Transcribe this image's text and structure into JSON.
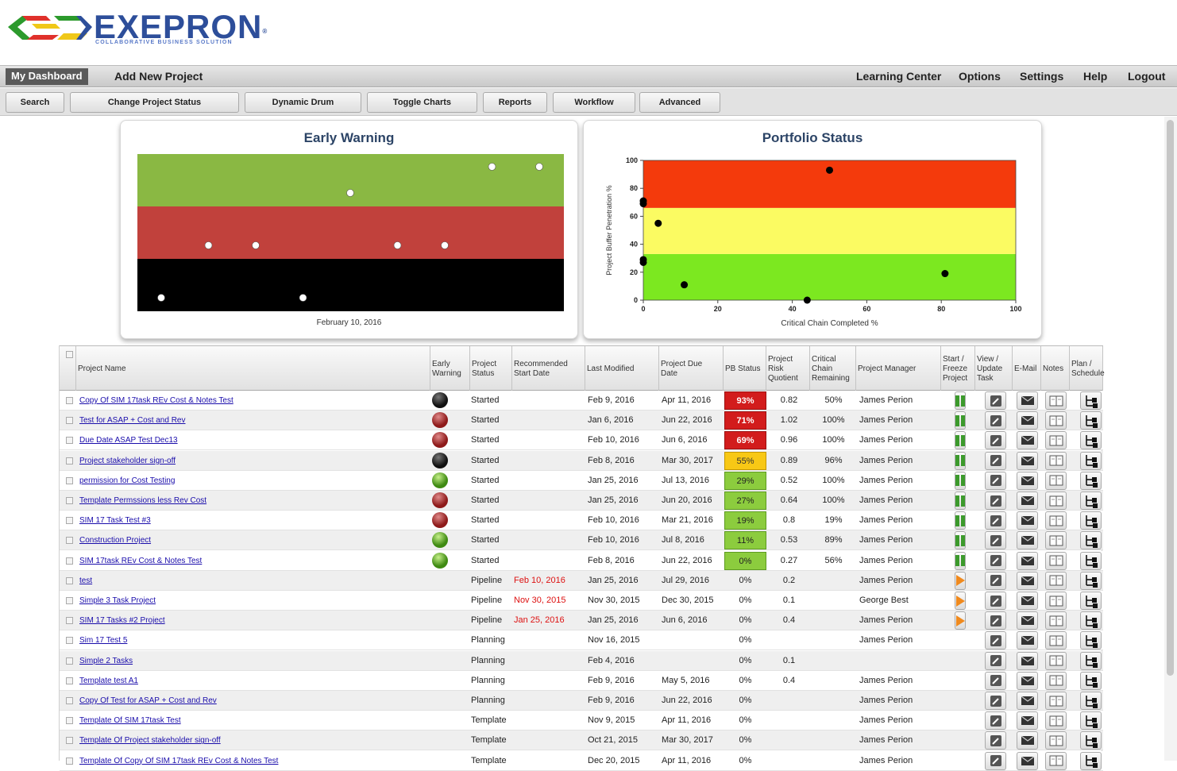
{
  "brand": {
    "name": "EXEPRON",
    "registered": "®",
    "tagline": "COLLABORATIVE BUSINESS SOLUTION"
  },
  "nav": {
    "dashboard": "My Dashboard",
    "add_project": "Add New Project",
    "learning": "Learning Center",
    "options": "Options",
    "settings": "Settings",
    "help": "Help",
    "logout": "Logout"
  },
  "toolbar": {
    "search": "Search",
    "change_status": "Change Project Status",
    "dynamic_drum": "Dynamic Drum",
    "toggle_charts": "Toggle Charts",
    "reports": "Reports",
    "workflow": "Workflow",
    "advanced": "Advanced"
  },
  "chart_data": [
    {
      "type": "scatter",
      "title": "Early Warning",
      "xlabel": "February 10, 2016",
      "ylabel": "",
      "bands": [
        {
          "color": "#8ab843"
        },
        {
          "color": "#c1413c"
        },
        {
          "color": "#000000"
        }
      ],
      "points": [
        {
          "x": 1,
          "band": "black"
        },
        {
          "x": 2,
          "band": "red"
        },
        {
          "x": 3,
          "band": "red"
        },
        {
          "x": 4,
          "band": "black"
        },
        {
          "x": 5,
          "band": "green"
        },
        {
          "x": 6,
          "band": "red"
        },
        {
          "x": 7,
          "band": "red"
        },
        {
          "x": 8,
          "band": "green"
        },
        {
          "x": 9,
          "band": "green"
        }
      ],
      "grid": false
    },
    {
      "type": "scatter",
      "title": "Portfolio Status",
      "xlabel": "Critical Chain Completed %",
      "ylabel": "Project Buffer Penetration %",
      "xlim": [
        0,
        100
      ],
      "ylim": [
        0,
        100
      ],
      "xticks": [
        0,
        20,
        40,
        60,
        80,
        100
      ],
      "yticks": [
        0,
        20,
        40,
        60,
        80,
        100
      ],
      "zones": [
        {
          "from": 0,
          "to": 33,
          "color": "#7ce820"
        },
        {
          "from": 33,
          "to": 66,
          "color": "#fbfb62"
        },
        {
          "from": 66,
          "to": 100,
          "color": "#f43a0c"
        }
      ],
      "x": [
        50,
        0,
        0,
        4,
        0,
        0,
        11,
        81,
        44
      ],
      "y": [
        93,
        71,
        69,
        55,
        29,
        27,
        11,
        19,
        0
      ],
      "grid": false
    }
  ],
  "table": {
    "columns": [
      "Project Name",
      "Early Warning",
      "Project Status",
      "Recommended Start Date",
      "Last Modified",
      "Project Due Date",
      "PB Status",
      "Project Risk Quotient",
      "Critical Chain Remaining",
      "Project Manager",
      "Start / Freeze Project",
      "View / Update Task",
      "E-Mail",
      "Notes",
      "Plan / Schedule"
    ],
    "rows": [
      {
        "name": "Copy Of SIM 17task REv Cost & Notes Test",
        "warning": "black",
        "status": "Started",
        "rec": "",
        "modified": "Feb 9, 2016",
        "due": "Apr 11, 2016",
        "pb": "93%",
        "pb_color": "red",
        "risk": "0.82",
        "cc": "50%",
        "pm": "James Perion",
        "action": "pause"
      },
      {
        "name": "Test for ASAP + Cost and Rev",
        "warning": "red",
        "status": "Started",
        "rec": "",
        "modified": "Jan 6, 2016",
        "due": "Jun 22, 2016",
        "pb": "71%",
        "pb_color": "red",
        "risk": "1.02",
        "cc": "100%",
        "pm": "James Perion",
        "action": "pause"
      },
      {
        "name": "Due Date ASAP Test Dec13",
        "warning": "red",
        "status": "Started",
        "rec": "",
        "modified": "Feb 10, 2016",
        "due": "Jun 6, 2016",
        "pb": "69%",
        "pb_color": "red",
        "risk": "0.96",
        "cc": "100%",
        "pm": "James Perion",
        "action": "pause"
      },
      {
        "name": "Project stakeholder sign-off",
        "warning": "black",
        "status": "Started",
        "rec": "",
        "modified": "Feb 8, 2016",
        "due": "Mar 30, 2017",
        "pb": "55%",
        "pb_color": "yellow",
        "risk": "0.89",
        "cc": "96%",
        "pm": "James Perion",
        "action": "pause"
      },
      {
        "name": "permission for Cost Testing",
        "warning": "green",
        "status": "Started",
        "rec": "",
        "modified": "Jan 25, 2016",
        "due": "Jul 13, 2016",
        "pb": "29%",
        "pb_color": "green",
        "risk": "0.52",
        "cc": "100%",
        "pm": "James Perion",
        "action": "pause"
      },
      {
        "name": "Template Permssions less Rev Cost",
        "warning": "red",
        "status": "Started",
        "rec": "",
        "modified": "Jan 25, 2016",
        "due": "Jun 20, 2016",
        "pb": "27%",
        "pb_color": "green",
        "risk": "0.64",
        "cc": "100%",
        "pm": "James Perion",
        "action": "pause"
      },
      {
        "name": "SIM 17 Task Test #3",
        "warning": "red",
        "status": "Started",
        "rec": "",
        "modified": "Feb 10, 2016",
        "due": "Mar 21, 2016",
        "pb": "19%",
        "pb_color": "green",
        "risk": "0.8",
        "cc": "19%",
        "pm": "James Perion",
        "action": "pause"
      },
      {
        "name": "Construction Project",
        "warning": "green",
        "status": "Started",
        "rec": "",
        "modified": "Feb 10, 2016",
        "due": "Jul 8, 2016",
        "pb": "11%",
        "pb_color": "green",
        "risk": "0.53",
        "cc": "89%",
        "pm": "James Perion",
        "action": "pause"
      },
      {
        "name": "SIM 17task REv Cost & Notes Test",
        "warning": "green",
        "status": "Started",
        "rec": "",
        "modified": "Feb 8, 2016",
        "due": "Jun 22, 2016",
        "pb": "0%",
        "pb_color": "green",
        "risk": "0.27",
        "cc": "56%",
        "pm": "James Perion",
        "action": "pause"
      },
      {
        "name": "test",
        "warning": "",
        "status": "Pipeline",
        "rec": "Feb 10, 2016",
        "modified": "Jan 25, 2016",
        "due": "Jul 29, 2016",
        "pb": "0%",
        "pb_color": "",
        "risk": "0.2",
        "cc": "",
        "pm": "James Perion",
        "action": "play"
      },
      {
        "name": "Simple 3 Task Project",
        "warning": "",
        "status": "Pipeline",
        "rec": "Nov 30, 2015",
        "modified": "Nov 30, 2015",
        "due": "Dec 30, 2015",
        "pb": "0%",
        "pb_color": "",
        "risk": "0.1",
        "cc": "",
        "pm": "George  Best",
        "action": "play"
      },
      {
        "name": "SIM 17 Tasks  #2 Project",
        "warning": "",
        "status": "Pipeline",
        "rec": "Jan 25, 2016",
        "modified": "Jan 25, 2016",
        "due": "Jun 6, 2016",
        "pb": "0%",
        "pb_color": "",
        "risk": "0.4",
        "cc": "",
        "pm": "James Perion",
        "action": "play"
      },
      {
        "name": "Sim 17 Test 5",
        "warning": "",
        "status": "Planning",
        "rec": "",
        "modified": "Nov 16, 2015",
        "due": "",
        "pb": "0%",
        "pb_color": "",
        "risk": "",
        "cc": "",
        "pm": "James Perion",
        "action": ""
      },
      {
        "name": "Simple 2 Tasks",
        "warning": "",
        "status": "Planning",
        "rec": "",
        "modified": "Feb 4, 2016",
        "due": "",
        "pb": "0%",
        "pb_color": "",
        "risk": "0.1",
        "cc": "",
        "pm": "",
        "action": ""
      },
      {
        "name": "Template test A1",
        "warning": "",
        "status": "Planning",
        "rec": "",
        "modified": "Feb 9, 2016",
        "due": "May 5, 2016",
        "pb": "0%",
        "pb_color": "",
        "risk": "0.4",
        "cc": "",
        "pm": "James Perion",
        "action": ""
      },
      {
        "name": "Copy Of Test for ASAP + Cost and Rev",
        "warning": "",
        "status": "Planning",
        "rec": "",
        "modified": "Feb 9, 2016",
        "due": "Jun 22, 2016",
        "pb": "0%",
        "pb_color": "",
        "risk": "",
        "cc": "",
        "pm": "James Perion",
        "action": ""
      },
      {
        "name": "Template Of SIM 17task Test",
        "warning": "",
        "status": "Template",
        "rec": "",
        "modified": "Nov 9, 2015",
        "due": "Apr 11, 2016",
        "pb": "0%",
        "pb_color": "",
        "risk": "",
        "cc": "",
        "pm": "James Perion",
        "action": ""
      },
      {
        "name": "Template Of Project stakeholder sign-off",
        "warning": "",
        "status": "Template",
        "rec": "",
        "modified": "Oct 21, 2015",
        "due": "Mar 30, 2017",
        "pb": "0%",
        "pb_color": "",
        "risk": "",
        "cc": "",
        "pm": "James Perion",
        "action": ""
      },
      {
        "name": "Template Of Copy Of SIM 17task REv Cost & Notes Test",
        "warning": "",
        "status": "Template",
        "rec": "",
        "modified": "Dec 20, 2015",
        "due": "Apr 11, 2016",
        "pb": "0%",
        "pb_color": "",
        "risk": "",
        "cc": "",
        "pm": "James Perion",
        "action": ""
      }
    ]
  }
}
